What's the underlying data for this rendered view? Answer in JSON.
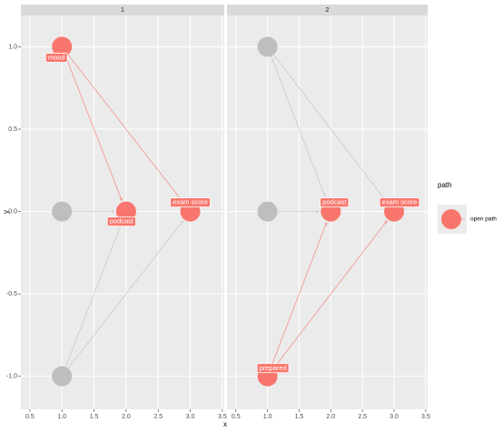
{
  "chart_data": {
    "type": "dag",
    "xlabel": "x",
    "ylabel": "y",
    "xlim": [
      0.36,
      3.53
    ],
    "ylim": [
      -1.2,
      1.19
    ],
    "xticks": [
      {
        "value": 0.5,
        "label": "0.5"
      },
      {
        "value": 1,
        "label": "1.0"
      },
      1.5,
      {
        "value": 2,
        "label": "2.0"
      },
      2.5,
      {
        "value": 3,
        "label": "3.0"
      },
      3.5
    ],
    "yticks": [
      {
        "value": -1,
        "label": "-1.0"
      },
      -0.5,
      {
        "value": 0,
        "label": "0.0"
      },
      0.5,
      {
        "value": 1,
        "label": "1.0"
      }
    ],
    "grid": true,
    "legend": {
      "title": "path",
      "position": "right",
      "entries": [
        {
          "name": "open path",
          "color": "#F8766D"
        }
      ]
    },
    "panels": [
      {
        "title": "1",
        "nodes": [
          {
            "label": "mood",
            "x": 1,
            "y": 1,
            "color": "#F8766D"
          },
          {
            "label": null,
            "x": 1,
            "y": 0,
            "color": "#BEBEBE"
          },
          {
            "label": "podcast",
            "x": 2,
            "y": 0,
            "color": "#F8766D"
          },
          {
            "label": "exam score",
            "x": 3,
            "y": 0,
            "color": "#F8766D"
          },
          {
            "label": null,
            "x": 1,
            "y": -1,
            "color": "#BEBEBE"
          }
        ],
        "edges": [
          {
            "from": 0,
            "to": 2,
            "color": "#F8766D"
          },
          {
            "from": 0,
            "to": 3,
            "color": "#F8766D"
          },
          {
            "from": 1,
            "to": 2,
            "color": "#BEBEBE"
          },
          {
            "from": 4,
            "to": 2,
            "color": "#BEBEBE"
          },
          {
            "from": 4,
            "to": 3,
            "color": "#BEBEBE"
          }
        ]
      },
      {
        "title": "2",
        "nodes": [
          {
            "label": null,
            "x": 1,
            "y": 1,
            "color": "#BEBEBE"
          },
          {
            "label": null,
            "x": 1,
            "y": 0,
            "color": "#BEBEBE"
          },
          {
            "label": "podcast",
            "x": 2,
            "y": 0,
            "color": "#F8766D"
          },
          {
            "label": "exam score",
            "x": 3,
            "y": 0,
            "color": "#F8766D"
          },
          {
            "label": "prepared",
            "x": 1,
            "y": -1,
            "color": "#F8766D"
          }
        ],
        "edges": [
          {
            "from": 0,
            "to": 2,
            "color": "#BEBEBE"
          },
          {
            "from": 0,
            "to": 3,
            "color": "#BEBEBE"
          },
          {
            "from": 1,
            "to": 2,
            "color": "#BEBEBE"
          },
          {
            "from": 4,
            "to": 2,
            "color": "#F8766D"
          },
          {
            "from": 4,
            "to": 3,
            "color": "#F8766D"
          }
        ]
      }
    ]
  }
}
